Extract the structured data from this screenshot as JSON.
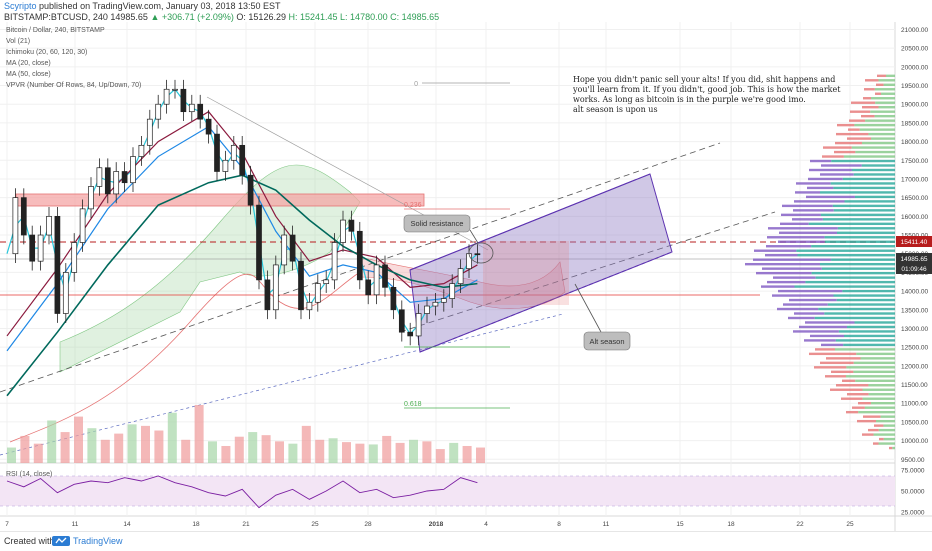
{
  "header": {
    "author": "Scyripto",
    "published": "published on TradingView.com, January 03, 2018 13:50 EST",
    "symbol": "BITSTAMP:BTCUSD, 240",
    "last": "14985.65",
    "change": "▲ +306.71 (+2.09%)",
    "open": "O: 15126.29",
    "high": "H: 15241.45",
    "low": "L: 14780.00",
    "close": "C: 14985.65"
  },
  "legend": [
    "Bitcoin / Dollar, 240, BITSTAMP",
    "Vol (21)",
    "Ichimoku (20, 60, 120, 30)",
    "MA (20, close)",
    "MA (50, close)",
    "VPVR (Number Of Rows, 84, Up/Down, 70)"
  ],
  "note": [
    "Hope you didn't panic sell your alts! If you did, shit happens and",
    "you'll learn from it. If you didn't, good job. This is how the market",
    "works. As long as bitcoin is in the purple we're good imo.",
    "alt season is upon us"
  ],
  "callouts": {
    "resistance": "Solid resistance",
    "alt": "Alt season"
  },
  "fib": {
    "level_0": "0",
    "level_0236": "0.236",
    "level_0618": "0.618"
  },
  "rsi_label": "RSI (14, close)",
  "footer": {
    "created_with": "Created with",
    "brand": "TradingView"
  },
  "price_badges": {
    "resistance": "15411.40",
    "last": "14985.65",
    "countdown": "01:09:46"
  },
  "colors": {
    "candle": "#222222",
    "ma20": "#1e88e5",
    "ma50": "#00695c",
    "conversion": "#26c6da",
    "base": "#8b1a3e",
    "cloud_up": "#a5d6a7",
    "cloud_down": "#ef9a9a",
    "channel": "#8e7cc3",
    "resistance_zone": "#f4a6a6",
    "rsi_band": "#f3e5f5",
    "rsi_line": "#7b1fa2",
    "vp_up": "#26a69a",
    "vp_down": "#e57373",
    "vp_value": "#7e57c2"
  },
  "chart_data": [
    {
      "type": "line",
      "title": "Bitcoin / Dollar, 240, BITSTAMP",
      "x_ticks": [
        "7",
        "11",
        "14",
        "18",
        "21",
        "25",
        "28",
        "2018",
        "4",
        "8",
        "11",
        "15",
        "18",
        "22",
        "25"
      ],
      "y_ticks": [
        "21000.00",
        "20500.00",
        "20000.00",
        "19500.00",
        "19000.00",
        "18500.00",
        "18000.00",
        "17500.00",
        "17000.00",
        "16500.00",
        "16000.00",
        "15500.00",
        "15000.00",
        "14500.00",
        "14000.00",
        "13500.00",
        "13000.00",
        "12500.00",
        "12000.00",
        "11500.00",
        "11000.00",
        "10500.00",
        "10000.00",
        "9500.00"
      ],
      "ylim": [
        9400,
        21200
      ],
      "series": [
        {
          "points": [
            [
              7,
              15000
            ],
            [
              7.5,
              16500
            ],
            [
              8,
              15500
            ],
            [
              8.5,
              14800
            ],
            [
              9,
              15500
            ],
            [
              9.5,
              16000
            ],
            [
              10,
              13400
            ],
            [
              10.5,
              14500
            ],
            [
              11,
              15300
            ],
            [
              11.5,
              16200
            ],
            [
              12,
              16800
            ],
            [
              12.5,
              17300
            ],
            [
              13,
              16600
            ],
            [
              13.5,
              17200
            ],
            [
              14,
              16900
            ],
            [
              14.5,
              17600
            ],
            [
              15,
              17900
            ],
            [
              15.5,
              18600
            ],
            [
              16,
              19000
            ],
            [
              16.5,
              19400
            ],
            [
              17,
              19400
            ],
            [
              17.5,
              18800
            ],
            [
              18,
              19000
            ],
            [
              18.5,
              18600
            ],
            [
              19,
              18200
            ],
            [
              19.5,
              17200
            ],
            [
              20,
              17500
            ],
            [
              20.5,
              17900
            ],
            [
              21,
              17100
            ],
            [
              21.5,
              16300
            ],
            [
              22,
              14300
            ],
            [
              22.5,
              13500
            ],
            [
              23,
              14700
            ],
            [
              23.5,
              15500
            ],
            [
              24,
              14800
            ],
            [
              24.5,
              13500
            ],
            [
              25,
              13700
            ],
            [
              25.5,
              14200
            ],
            [
              26,
              14300
            ],
            [
              26.5,
              15300
            ],
            [
              27,
              15900
            ],
            [
              27.5,
              15600
            ],
            [
              28,
              14300
            ],
            [
              28.5,
              13900
            ],
            [
              29,
              14700
            ],
            [
              29.5,
              14100
            ],
            [
              30,
              13500
            ],
            [
              30.5,
              12900
            ],
            [
              31,
              12800
            ],
            [
              31.5,
              13400
            ],
            [
              32,
              13600
            ],
            [
              32.5,
              13700
            ],
            [
              33,
              13800
            ],
            [
              33.5,
              14200
            ],
            [
              34,
              14600
            ],
            [
              34.5,
              15000
            ],
            [
              35,
              14985
            ]
          ]
        },
        {
          "name": "MA (20, close)",
          "points": [
            [
              7,
              12400
            ],
            [
              10,
              14200
            ],
            [
              13,
              16200
            ],
            [
              16,
              17600
            ],
            [
              19,
              18400
            ],
            [
              21,
              17300
            ],
            [
              23,
              15600
            ],
            [
              25,
              14400
            ],
            [
              27,
              14700
            ],
            [
              29,
              14500
            ],
            [
              31,
              13700
            ],
            [
              33,
              13800
            ],
            [
              35,
              14300
            ]
          ]
        },
        {
          "name": "MA (50, close)",
          "points": [
            [
              7,
              11200
            ],
            [
              10,
              12900
            ],
            [
              13,
              14700
            ],
            [
              16,
              16300
            ],
            [
              19,
              16900
            ],
            [
              21,
              17100
            ],
            [
              23,
              16700
            ],
            [
              25,
              15900
            ],
            [
              27,
              15200
            ],
            [
              29,
              14700
            ],
            [
              31,
              14300
            ],
            [
              33,
              14100
            ],
            [
              35,
              14200
            ]
          ]
        }
      ]
    },
    {
      "type": "line",
      "title": "RSI (14, close)",
      "ylim": [
        20,
        80
      ],
      "y_ticks": [
        "75.0000",
        "50.0000",
        "25.0000"
      ],
      "points": [
        [
          7,
          62
        ],
        [
          8,
          55
        ],
        [
          9,
          65
        ],
        [
          10,
          48
        ],
        [
          11,
          58
        ],
        [
          12,
          62
        ],
        [
          13,
          60
        ],
        [
          14,
          66
        ],
        [
          15,
          62
        ],
        [
          16,
          68
        ],
        [
          17,
          60
        ],
        [
          18,
          55
        ],
        [
          19,
          48
        ],
        [
          20,
          44
        ],
        [
          21,
          52
        ],
        [
          22,
          30
        ],
        [
          23,
          45
        ],
        [
          24,
          52
        ],
        [
          25,
          40
        ],
        [
          26,
          50
        ],
        [
          27,
          62
        ],
        [
          28,
          48
        ],
        [
          29,
          52
        ],
        [
          30,
          42
        ],
        [
          31,
          45
        ],
        [
          32,
          50
        ],
        [
          33,
          52
        ],
        [
          34,
          66
        ],
        [
          35,
          60
        ]
      ]
    },
    {
      "type": "bar",
      "title": "Vol (21)",
      "values": [
        20,
        35,
        25,
        55,
        40,
        60,
        45,
        30,
        38,
        50,
        48,
        42,
        65,
        30,
        75,
        28,
        22,
        34,
        40,
        36,
        28,
        25,
        48,
        30,
        32,
        27,
        25,
        24,
        35,
        26,
        30,
        28,
        18,
        26,
        22,
        20
      ]
    }
  ]
}
